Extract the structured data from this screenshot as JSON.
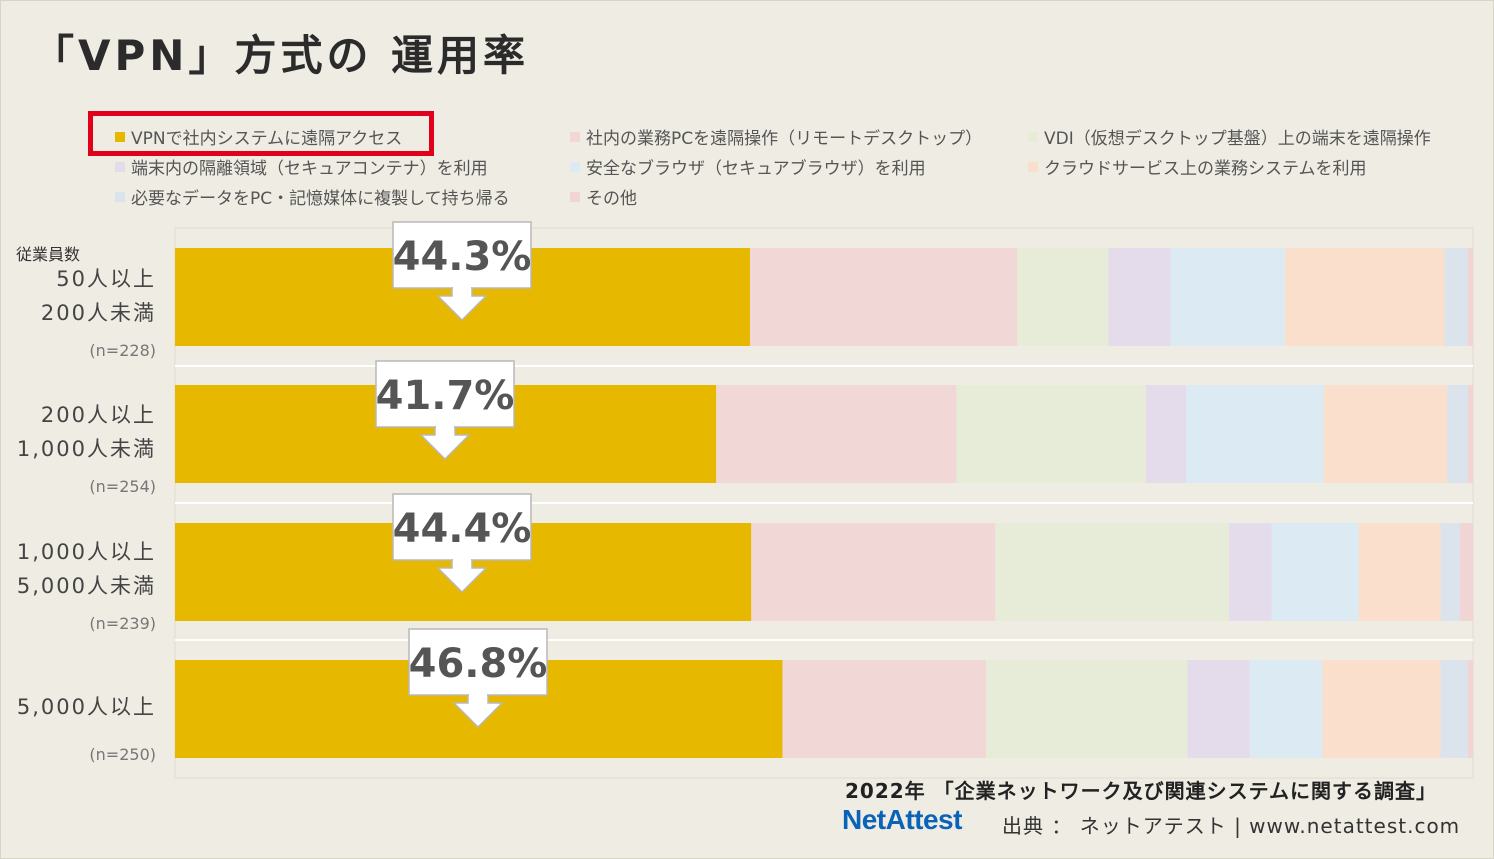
{
  "title": "「VPN」方式の 運用率",
  "chart_data": {
    "type": "bar",
    "stacked": true,
    "orientation": "horizontal",
    "y_caption": "従業員数",
    "categories": [
      {
        "label_lines": [
          "50人以上",
          "200人未満"
        ],
        "n": "(n=228)"
      },
      {
        "label_lines": [
          "200人以上",
          "1,000人未満"
        ],
        "n": "(n=254)"
      },
      {
        "label_lines": [
          "1,000人以上",
          "5,000人未満"
        ],
        "n": "(n=239)"
      },
      {
        "label_lines": [
          "5,000人以上"
        ],
        "n": "(n=250)"
      }
    ],
    "xlim": [
      0,
      100
    ],
    "series": [
      {
        "name": "VPNで社内システムに遠隔アクセス",
        "color": "#e6b800",
        "values": [
          44.3,
          41.7,
          44.4,
          46.8
        ]
      },
      {
        "name": "社内の業務PCを遠隔操作（リモートデスクトップ）",
        "color": "#f1d8d6",
        "values": [
          20.6,
          18.5,
          18.8,
          15.7
        ]
      },
      {
        "name": "VDI（仮想デスクトップ基盤）上の端末を遠隔操作",
        "color": "#e7ecd9",
        "values": [
          7.0,
          14.6,
          18.0,
          15.5
        ]
      },
      {
        "name": "端末内の隔離領域（セキュアコンテナ）を利用",
        "color": "#e4dbeb",
        "values": [
          4.8,
          3.1,
          3.3,
          4.8
        ]
      },
      {
        "name": "安全なブラウザ（セキュアブラウザ）を利用",
        "color": "#dcebf3",
        "values": [
          8.8,
          10.6,
          6.7,
          5.6
        ]
      },
      {
        "name": "クラウドサービス上の業務システムを利用",
        "color": "#fadfcc",
        "values": [
          12.3,
          9.5,
          6.3,
          9.1
        ]
      },
      {
        "name": "必要なデータをPC・記憶媒体に複製して持ち帰る",
        "color": "#dbe3ec",
        "values": [
          1.8,
          1.6,
          1.5,
          2.1
        ]
      },
      {
        "name": "その他",
        "color": "#f1d4d4",
        "values": [
          0.4,
          0.4,
          1.0,
          0.4
        ]
      }
    ],
    "callouts": [
      "44.3%",
      "41.7%",
      "44.4%",
      "46.8%"
    ],
    "highlighted_legend_item": "VPNで社内システムに遠隔アクセス",
    "highlight_color": "#e0001b"
  },
  "footer": {
    "source": "2022年 「企業ネットワーク及び関連システムに関する調査」",
    "brand": "NetAttest",
    "credit": "出典 ： ネットアテスト | www.netattest.com"
  }
}
